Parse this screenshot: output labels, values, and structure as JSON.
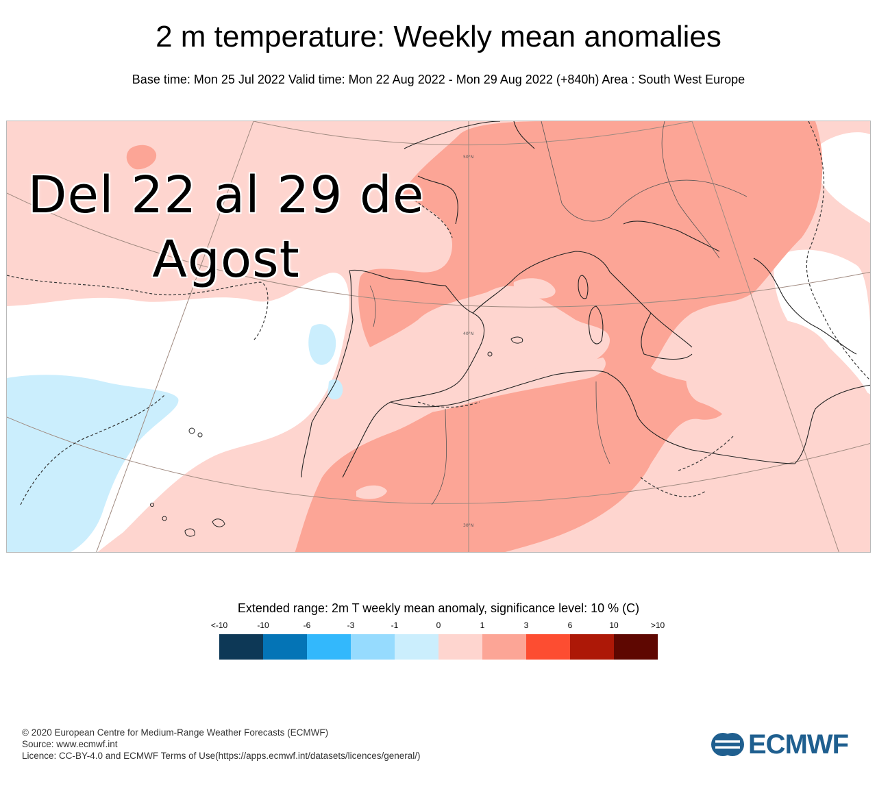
{
  "header": {
    "title": "2 m temperature: Weekly mean anomalies",
    "subtitle": "Base time: Mon 25 Jul 2022 Valid time: Mon 22 Aug 2022 - Mon 29 Aug 2022 (+840h) Area : South West Europe"
  },
  "map": {
    "overlay_line1": "Del 22 al 29 de",
    "overlay_line2": "Agost",
    "lat_labels": [
      "50°N",
      "40°N",
      "30°N"
    ],
    "fill_colors": {
      "white": "#ffffff",
      "light_blue": "#cbeefd",
      "light_pink": "#fed5cf",
      "salmon": "#fca596"
    }
  },
  "legend": {
    "title": "Extended range: 2m T weekly mean anomaly, significance level: 10 % (C)",
    "labels": [
      "<-10",
      "-10",
      "-6",
      "-3",
      "-1",
      "0",
      "1",
      "3",
      "6",
      "10",
      ">10"
    ],
    "colors": [
      "#0d3856",
      "#0474b6",
      "#33b8fc",
      "#96dbfe",
      "#cbeefd",
      "#fed5cf",
      "#fca596",
      "#fd4d31",
      "#ad1807",
      "#5e0701"
    ]
  },
  "footer": {
    "line1": "© 2020 European Centre for Medium-Range Weather Forecasts (ECMWF)",
    "line2": "Source: www.ecmwf.int",
    "line3": "Licence: CC-BY-4.0 and ECMWF Terms of Use(https://apps.ecmwf.int/datasets/licences/general/)",
    "logo_text": "ECMWF",
    "logo_color": "#1f5f8f"
  }
}
